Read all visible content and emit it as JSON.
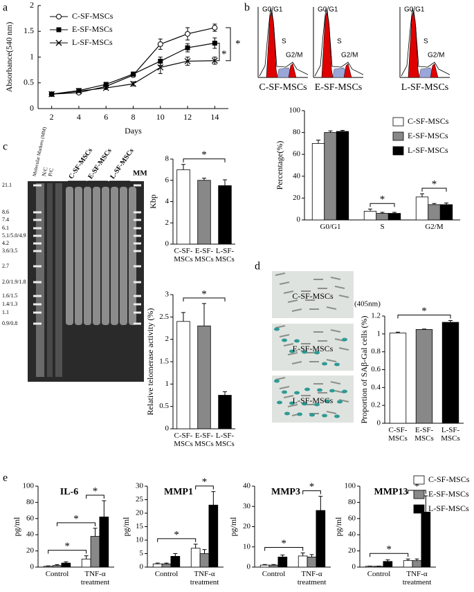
{
  "chart_data": [
    {
      "type": "line",
      "panel": "a",
      "ylabel": "Absorbance(540 nm)",
      "xlabel": "Days",
      "x": [
        2,
        4,
        6,
        8,
        10,
        12,
        14
      ],
      "xlim": [
        1,
        15
      ],
      "xticks": [
        2,
        4,
        6,
        8,
        10,
        12,
        14
      ],
      "ylim": [
        0,
        2
      ],
      "yticks": [
        0,
        0.5,
        1,
        1.5,
        2
      ],
      "annotations": [
        "*",
        "*"
      ],
      "series": [
        {
          "name": "C-SF-MSCs",
          "color": "#000000",
          "marker": "circle-open",
          "values": [
            0.28,
            0.31,
            0.43,
            0.65,
            1.25,
            1.45,
            1.57
          ],
          "errors": [
            0.02,
            0.02,
            0.03,
            0.04,
            0.1,
            0.12,
            0.07
          ]
        },
        {
          "name": "E-SF-MSCs",
          "color": "#000000",
          "marker": "square",
          "values": [
            0.28,
            0.35,
            0.47,
            0.67,
            0.92,
            1.18,
            1.27
          ],
          "errors": [
            0.02,
            0.02,
            0.03,
            0.04,
            0.08,
            0.08,
            0.1
          ]
        },
        {
          "name": "L-SF-MSCs",
          "color": "#000000",
          "marker": "x",
          "values": [
            0.28,
            0.34,
            0.4,
            0.48,
            0.8,
            0.92,
            0.93
          ],
          "errors": [
            0.02,
            0.03,
            0.03,
            0.04,
            0.12,
            0.08,
            0.07
          ]
        }
      ]
    },
    {
      "type": "bar",
      "panel": "b",
      "ylabel": "Percentage(%)",
      "categories": [
        "G0/G1",
        "S",
        "G2/M"
      ],
      "ylim": [
        0,
        100
      ],
      "yticks": [
        0,
        20,
        40,
        60,
        80,
        100
      ],
      "annotations": [
        "*",
        "*"
      ],
      "histograms": [
        {
          "caption": "C-SF-MSCs",
          "peaks": [
            "G0/G1",
            "S",
            "G2/M"
          ]
        },
        {
          "caption": "E-SF-MSCs",
          "peaks": [
            "G0/G1",
            "S",
            "G2/M"
          ]
        },
        {
          "caption": "L-SF-MSCs",
          "peaks": [
            "G0/G1",
            "S",
            "G2/M"
          ]
        }
      ],
      "series": [
        {
          "name": "C-SF-MSCs",
          "color": "#ffffff",
          "values": [
            70,
            8,
            21
          ],
          "errors": [
            3,
            2,
            3
          ]
        },
        {
          "name": "E-SF-MSCs",
          "color": "#888888",
          "values": [
            80,
            6,
            14
          ],
          "errors": [
            1.5,
            1,
            1
          ]
        },
        {
          "name": "L-SF-MSCs",
          "color": "#000000",
          "values": [
            81,
            6,
            14
          ],
          "errors": [
            1,
            1,
            1.5
          ]
        }
      ]
    },
    {
      "type": "bar",
      "panel": "c",
      "ylabel": "Kbp",
      "categories": [
        "C-SF-MSCs",
        "E-SF-MSCs",
        "L-SF-MSCs"
      ],
      "colors": [
        "#ffffff",
        "#888888",
        "#000000"
      ],
      "values": [
        7.0,
        6.0,
        5.5
      ],
      "errors": [
        0.5,
        0.2,
        0.55
      ],
      "ylim": [
        0,
        8
      ],
      "yticks": [
        0,
        2,
        4,
        6,
        8
      ],
      "annotations": [
        "*"
      ],
      "gel": {
        "lanes": [
          "Molecular Markers (MM)",
          "N/C",
          "P/C"
        ],
        "groups": [
          "C-SF-MSCs",
          "E-SF-MSCs",
          "L-SF-MSCs"
        ],
        "end_lane": "MM",
        "ladder": [
          "21.1",
          "8.6",
          "7.4",
          "6.1",
          "5.1/5.0/4.9",
          "4.2",
          "3.6/3.5",
          "2.7",
          "2.0/1.9/1.8",
          "1.6/1.5",
          "1.4/1.3",
          "1.1",
          "0.9/0.8"
        ]
      }
    },
    {
      "type": "bar",
      "ylabel": "Relative telomerase activity (%)",
      "categories": [
        "C-SF-MSCs",
        "E-SF-MSCs",
        "L-SF-MSCs"
      ],
      "colors": [
        "#ffffff",
        "#888888",
        "#000000"
      ],
      "values": [
        2.4,
        2.3,
        0.75
      ],
      "errors": [
        0.2,
        0.5,
        0.08
      ],
      "ylim": [
        0,
        3
      ],
      "yticks": [
        0,
        0.5,
        1,
        1.5,
        2,
        2.5,
        3
      ],
      "annotations": [
        "*"
      ]
    },
    {
      "type": "bar",
      "panel": "d",
      "ylabel": "Proportion of SAβ-Gal  cells (%)",
      "note": "(405nm)",
      "micrographs": [
        "C-SF-MSCs",
        "E-SF-MSCs",
        "L-SF-MSCs"
      ],
      "categories": [
        "C-SF-MSCs",
        "E-SF-MSCs",
        "L-SF-MSCs"
      ],
      "colors": [
        "#ffffff",
        "#888888",
        "#000000"
      ],
      "values": [
        1.01,
        1.05,
        1.13
      ],
      "errors": [
        0.01,
        0.005,
        0.02
      ],
      "ylim": [
        0,
        1.2
      ],
      "yticks": [
        0,
        0.2,
        0.4,
        0.6,
        0.8,
        1,
        1.2
      ],
      "annotations": [
        "*"
      ]
    },
    {
      "type": "bar-panels",
      "panel": "e",
      "ylabel": "pg/ml",
      "categories": [
        "Control",
        "TNF-α treatment"
      ],
      "series": [
        {
          "name": "C-SF-MSCs",
          "color": "#ffffff"
        },
        {
          "name": "E-SF-MSCs",
          "color": "#888888"
        },
        {
          "name": "L-SF-MSCs",
          "color": "#000000"
        }
      ],
      "panels": [
        {
          "title": "IL-6",
          "ylim": [
            0,
            100
          ],
          "yticks": [
            0,
            20,
            40,
            60,
            80,
            100
          ],
          "values": [
            [
              1,
              10
            ],
            [
              2,
              38
            ],
            [
              5,
              62
            ]
          ],
          "errors": [
            [
              0.5,
              4
            ],
            [
              1,
              10
            ],
            [
              1.5,
              20
            ]
          ],
          "annotations": [
            "*",
            "*",
            "*"
          ]
        },
        {
          "title": "MMP1",
          "ylim": [
            0,
            30
          ],
          "yticks": [
            0,
            5,
            10,
            15,
            20,
            25,
            30
          ],
          "values": [
            [
              1.2,
              7
            ],
            [
              1.2,
              5
            ],
            [
              4,
              23
            ]
          ],
          "errors": [
            [
              0.3,
              1.5
            ],
            [
              0.3,
              1.5
            ],
            [
              1,
              5
            ]
          ],
          "annotations": [
            "*",
            "*"
          ]
        },
        {
          "title": "MMP3",
          "ylim": [
            0,
            40
          ],
          "yticks": [
            0,
            10,
            20,
            30,
            40
          ],
          "values": [
            [
              1,
              5.5
            ],
            [
              1,
              5
            ],
            [
              5,
              28
            ]
          ],
          "errors": [
            [
              0.3,
              1.5
            ],
            [
              0.3,
              1.2
            ],
            [
              1,
              7
            ]
          ],
          "annotations": [
            "*",
            "*"
          ]
        },
        {
          "title": "MMP13",
          "ylim": [
            0,
            100
          ],
          "yticks": [
            0,
            20,
            40,
            60,
            80,
            100
          ],
          "values": [
            [
              1,
              8
            ],
            [
              1,
              8
            ],
            [
              7,
              68
            ]
          ],
          "errors": [
            [
              0.3,
              2
            ],
            [
              0.3,
              2
            ],
            [
              2,
              20
            ]
          ],
          "annotations": [
            "*",
            "*"
          ]
        }
      ]
    }
  ]
}
